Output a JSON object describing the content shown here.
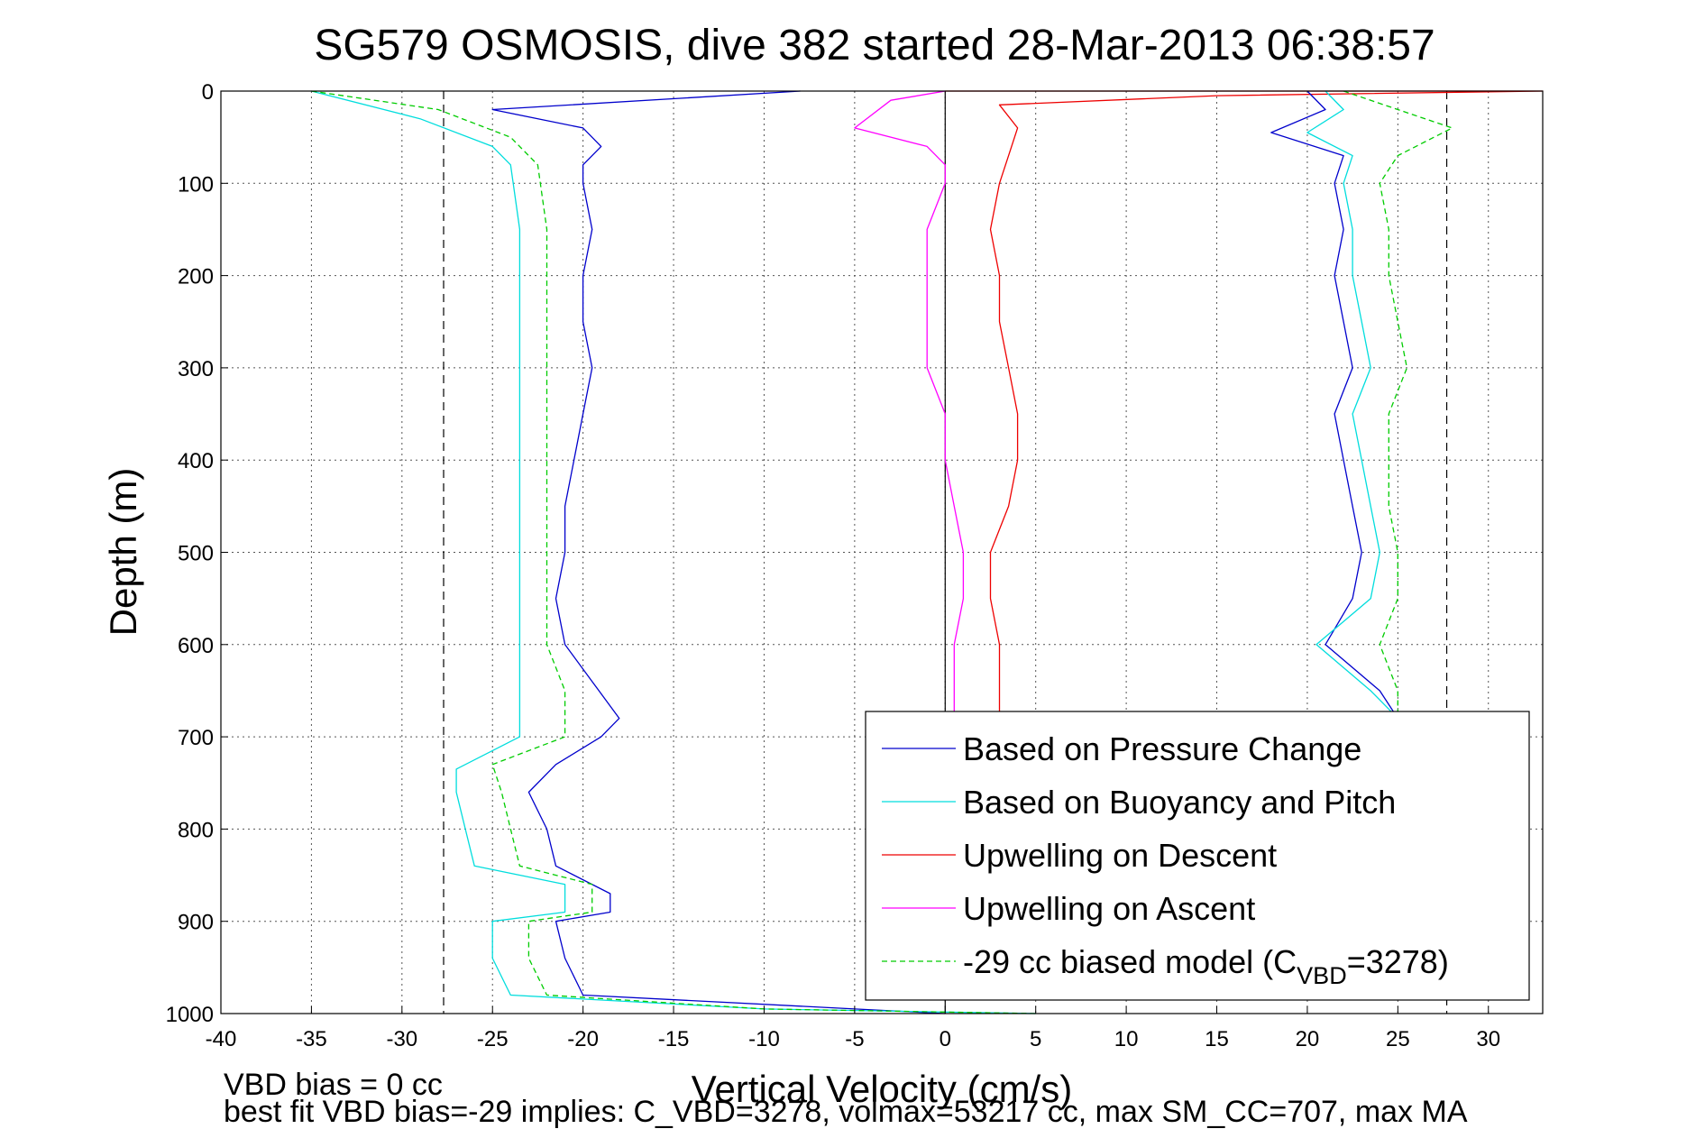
{
  "chart_data": {
    "type": "line",
    "title": "SG579 OSMOSIS, dive 382 started 28-Mar-2013 06:38:57",
    "xlabel": "Vertical Velocity (cm/s)",
    "ylabel": "Depth (m)",
    "xlim": [
      -40,
      33
    ],
    "ylim": [
      1000,
      0
    ],
    "y_reversed": true,
    "grid": true,
    "x_ticks": [
      -40,
      -35,
      -30,
      -25,
      -20,
      -15,
      -10,
      -5,
      0,
      5,
      10,
      15,
      20,
      25,
      30
    ],
    "y_ticks": [
      0,
      100,
      200,
      300,
      400,
      500,
      600,
      700,
      800,
      900,
      1000
    ],
    "reference_lines": [
      -27.7,
      0,
      27.7
    ],
    "legend_position": "lower-right",
    "footer_lines": [
      "VBD bias = 0 cc",
      "best fit VBD bias=-29 implies: C_VBD=3278, volmax=53217 cc, max SM_CC=707, max MA"
    ],
    "series": [
      {
        "name": "Based on Pressure Change",
        "color": "#0000cc",
        "style": "solid",
        "points": [
          [
            -8,
            0
          ],
          [
            -25,
            20
          ],
          [
            -20,
            40
          ],
          [
            -19,
            60
          ],
          [
            -20,
            80
          ],
          [
            -20,
            100
          ],
          [
            -19.5,
            150
          ],
          [
            -20,
            200
          ],
          [
            -20,
            250
          ],
          [
            -19.5,
            300
          ],
          [
            -20,
            350
          ],
          [
            -20.5,
            400
          ],
          [
            -21,
            450
          ],
          [
            -21,
            500
          ],
          [
            -21.5,
            550
          ],
          [
            -21,
            600
          ],
          [
            -19.5,
            640
          ],
          [
            -18,
            680
          ],
          [
            -19,
            700
          ],
          [
            -21.5,
            730
          ],
          [
            -23,
            760
          ],
          [
            -22,
            800
          ],
          [
            -21.5,
            840
          ],
          [
            -18.5,
            870
          ],
          [
            -18.5,
            890
          ],
          [
            -21.5,
            900
          ],
          [
            -21,
            940
          ],
          [
            -20,
            980
          ],
          [
            -5,
            995
          ],
          [
            0,
            1000
          ]
        ]
      },
      {
        "name": "Based on Buoyancy and Pitch",
        "color": "#00dddd",
        "style": "solid",
        "points": [
          [
            -35,
            0
          ],
          [
            -29,
            30
          ],
          [
            -25,
            60
          ],
          [
            -24,
            80
          ],
          [
            -23.5,
            150
          ],
          [
            -23.5,
            200
          ],
          [
            -23.5,
            250
          ],
          [
            -23.5,
            300
          ],
          [
            -23.5,
            350
          ],
          [
            -23.5,
            400
          ],
          [
            -23.5,
            450
          ],
          [
            -23.5,
            500
          ],
          [
            -23.5,
            550
          ],
          [
            -23.5,
            600
          ],
          [
            -23.5,
            650
          ],
          [
            -23.5,
            700
          ],
          [
            -27,
            735
          ],
          [
            -27,
            760
          ],
          [
            -26.5,
            800
          ],
          [
            -26,
            840
          ],
          [
            -21,
            860
          ],
          [
            -21,
            890
          ],
          [
            -25,
            900
          ],
          [
            -25,
            940
          ],
          [
            -24,
            980
          ],
          [
            -10,
            995
          ],
          [
            5,
            1000
          ]
        ]
      },
      {
        "name": "Upwelling on Descent",
        "color": "#ee0000",
        "style": "solid",
        "points": [
          [
            0,
            0
          ],
          [
            33,
            0
          ],
          [
            15,
            5
          ],
          [
            3,
            15
          ],
          [
            4,
            40
          ],
          [
            3.5,
            70
          ],
          [
            3,
            100
          ],
          [
            2.5,
            150
          ],
          [
            3,
            200
          ],
          [
            3,
            250
          ],
          [
            3.5,
            300
          ],
          [
            4,
            350
          ],
          [
            4,
            400
          ],
          [
            3.5,
            450
          ],
          [
            2.5,
            500
          ],
          [
            2.5,
            550
          ],
          [
            3,
            600
          ],
          [
            3,
            650
          ],
          [
            3,
            680
          ]
        ]
      },
      {
        "name": "Upwelling on Ascent",
        "color": "#ff00ff",
        "style": "solid",
        "points": [
          [
            0,
            0
          ],
          [
            -3,
            10
          ],
          [
            -5,
            40
          ],
          [
            -1,
            60
          ],
          [
            0,
            80
          ],
          [
            0,
            100
          ],
          [
            -1,
            150
          ],
          [
            -1,
            200
          ],
          [
            -1,
            250
          ],
          [
            -1,
            300
          ],
          [
            0,
            350
          ],
          [
            0,
            400
          ],
          [
            0.5,
            450
          ],
          [
            1,
            500
          ],
          [
            1,
            550
          ],
          [
            0.5,
            600
          ],
          [
            0.5,
            650
          ],
          [
            0.5,
            680
          ]
        ]
      },
      {
        "name": "-29 cc biased model (C",
        "name_sub": "VBD",
        "name_tail": "=3278)",
        "color": "#00cc00",
        "style": "dashed",
        "points": [
          [
            -35,
            0
          ],
          [
            -28,
            20
          ],
          [
            -24,
            50
          ],
          [
            -22.5,
            80
          ],
          [
            -22,
            150
          ],
          [
            -22,
            200
          ],
          [
            -22,
            250
          ],
          [
            -22,
            300
          ],
          [
            -22,
            350
          ],
          [
            -22,
            400
          ],
          [
            -22,
            450
          ],
          [
            -22,
            500
          ],
          [
            -22,
            550
          ],
          [
            -22,
            600
          ],
          [
            -21,
            650
          ],
          [
            -21,
            700
          ],
          [
            -25,
            730
          ],
          [
            -24.5,
            760
          ],
          [
            -24,
            800
          ],
          [
            -23.5,
            840
          ],
          [
            -19.5,
            860
          ],
          [
            -19.5,
            890
          ],
          [
            -23,
            900
          ],
          [
            -23,
            940
          ],
          [
            -22,
            980
          ],
          [
            -10,
            995
          ],
          [
            5,
            1000
          ]
        ]
      },
      {
        "name": "",
        "color": "#0000cc",
        "style": "solid",
        "points": [
          [
            20,
            0
          ],
          [
            21,
            20
          ],
          [
            18,
            45
          ],
          [
            22,
            70
          ],
          [
            21.5,
            100
          ],
          [
            22,
            150
          ],
          [
            21.5,
            200
          ],
          [
            22,
            250
          ],
          [
            22.5,
            300
          ],
          [
            21.5,
            350
          ],
          [
            22,
            400
          ],
          [
            22.5,
            450
          ],
          [
            23,
            500
          ],
          [
            22.5,
            550
          ],
          [
            21,
            600
          ],
          [
            24,
            650
          ],
          [
            25,
            680
          ]
        ]
      },
      {
        "name": "",
        "color": "#00dddd",
        "style": "solid",
        "points": [
          [
            21,
            0
          ],
          [
            22,
            20
          ],
          [
            20,
            45
          ],
          [
            22.5,
            70
          ],
          [
            22,
            100
          ],
          [
            22.5,
            150
          ],
          [
            22.5,
            200
          ],
          [
            23,
            250
          ],
          [
            23.5,
            300
          ],
          [
            22.5,
            350
          ],
          [
            23,
            400
          ],
          [
            23.5,
            450
          ],
          [
            24,
            500
          ],
          [
            23.5,
            550
          ],
          [
            20.5,
            600
          ],
          [
            23.5,
            650
          ],
          [
            25,
            680
          ]
        ]
      },
      {
        "name": "",
        "color": "#00cc00",
        "style": "dashed",
        "points": [
          [
            22,
            0
          ],
          [
            25,
            20
          ],
          [
            28,
            40
          ],
          [
            25,
            70
          ],
          [
            24,
            100
          ],
          [
            24.5,
            150
          ],
          [
            24.5,
            200
          ],
          [
            25,
            250
          ],
          [
            25.5,
            300
          ],
          [
            24.5,
            350
          ],
          [
            24.5,
            400
          ],
          [
            24.5,
            450
          ],
          [
            25,
            500
          ],
          [
            25,
            550
          ],
          [
            24,
            600
          ],
          [
            25,
            650
          ],
          [
            25,
            680
          ]
        ]
      }
    ]
  }
}
